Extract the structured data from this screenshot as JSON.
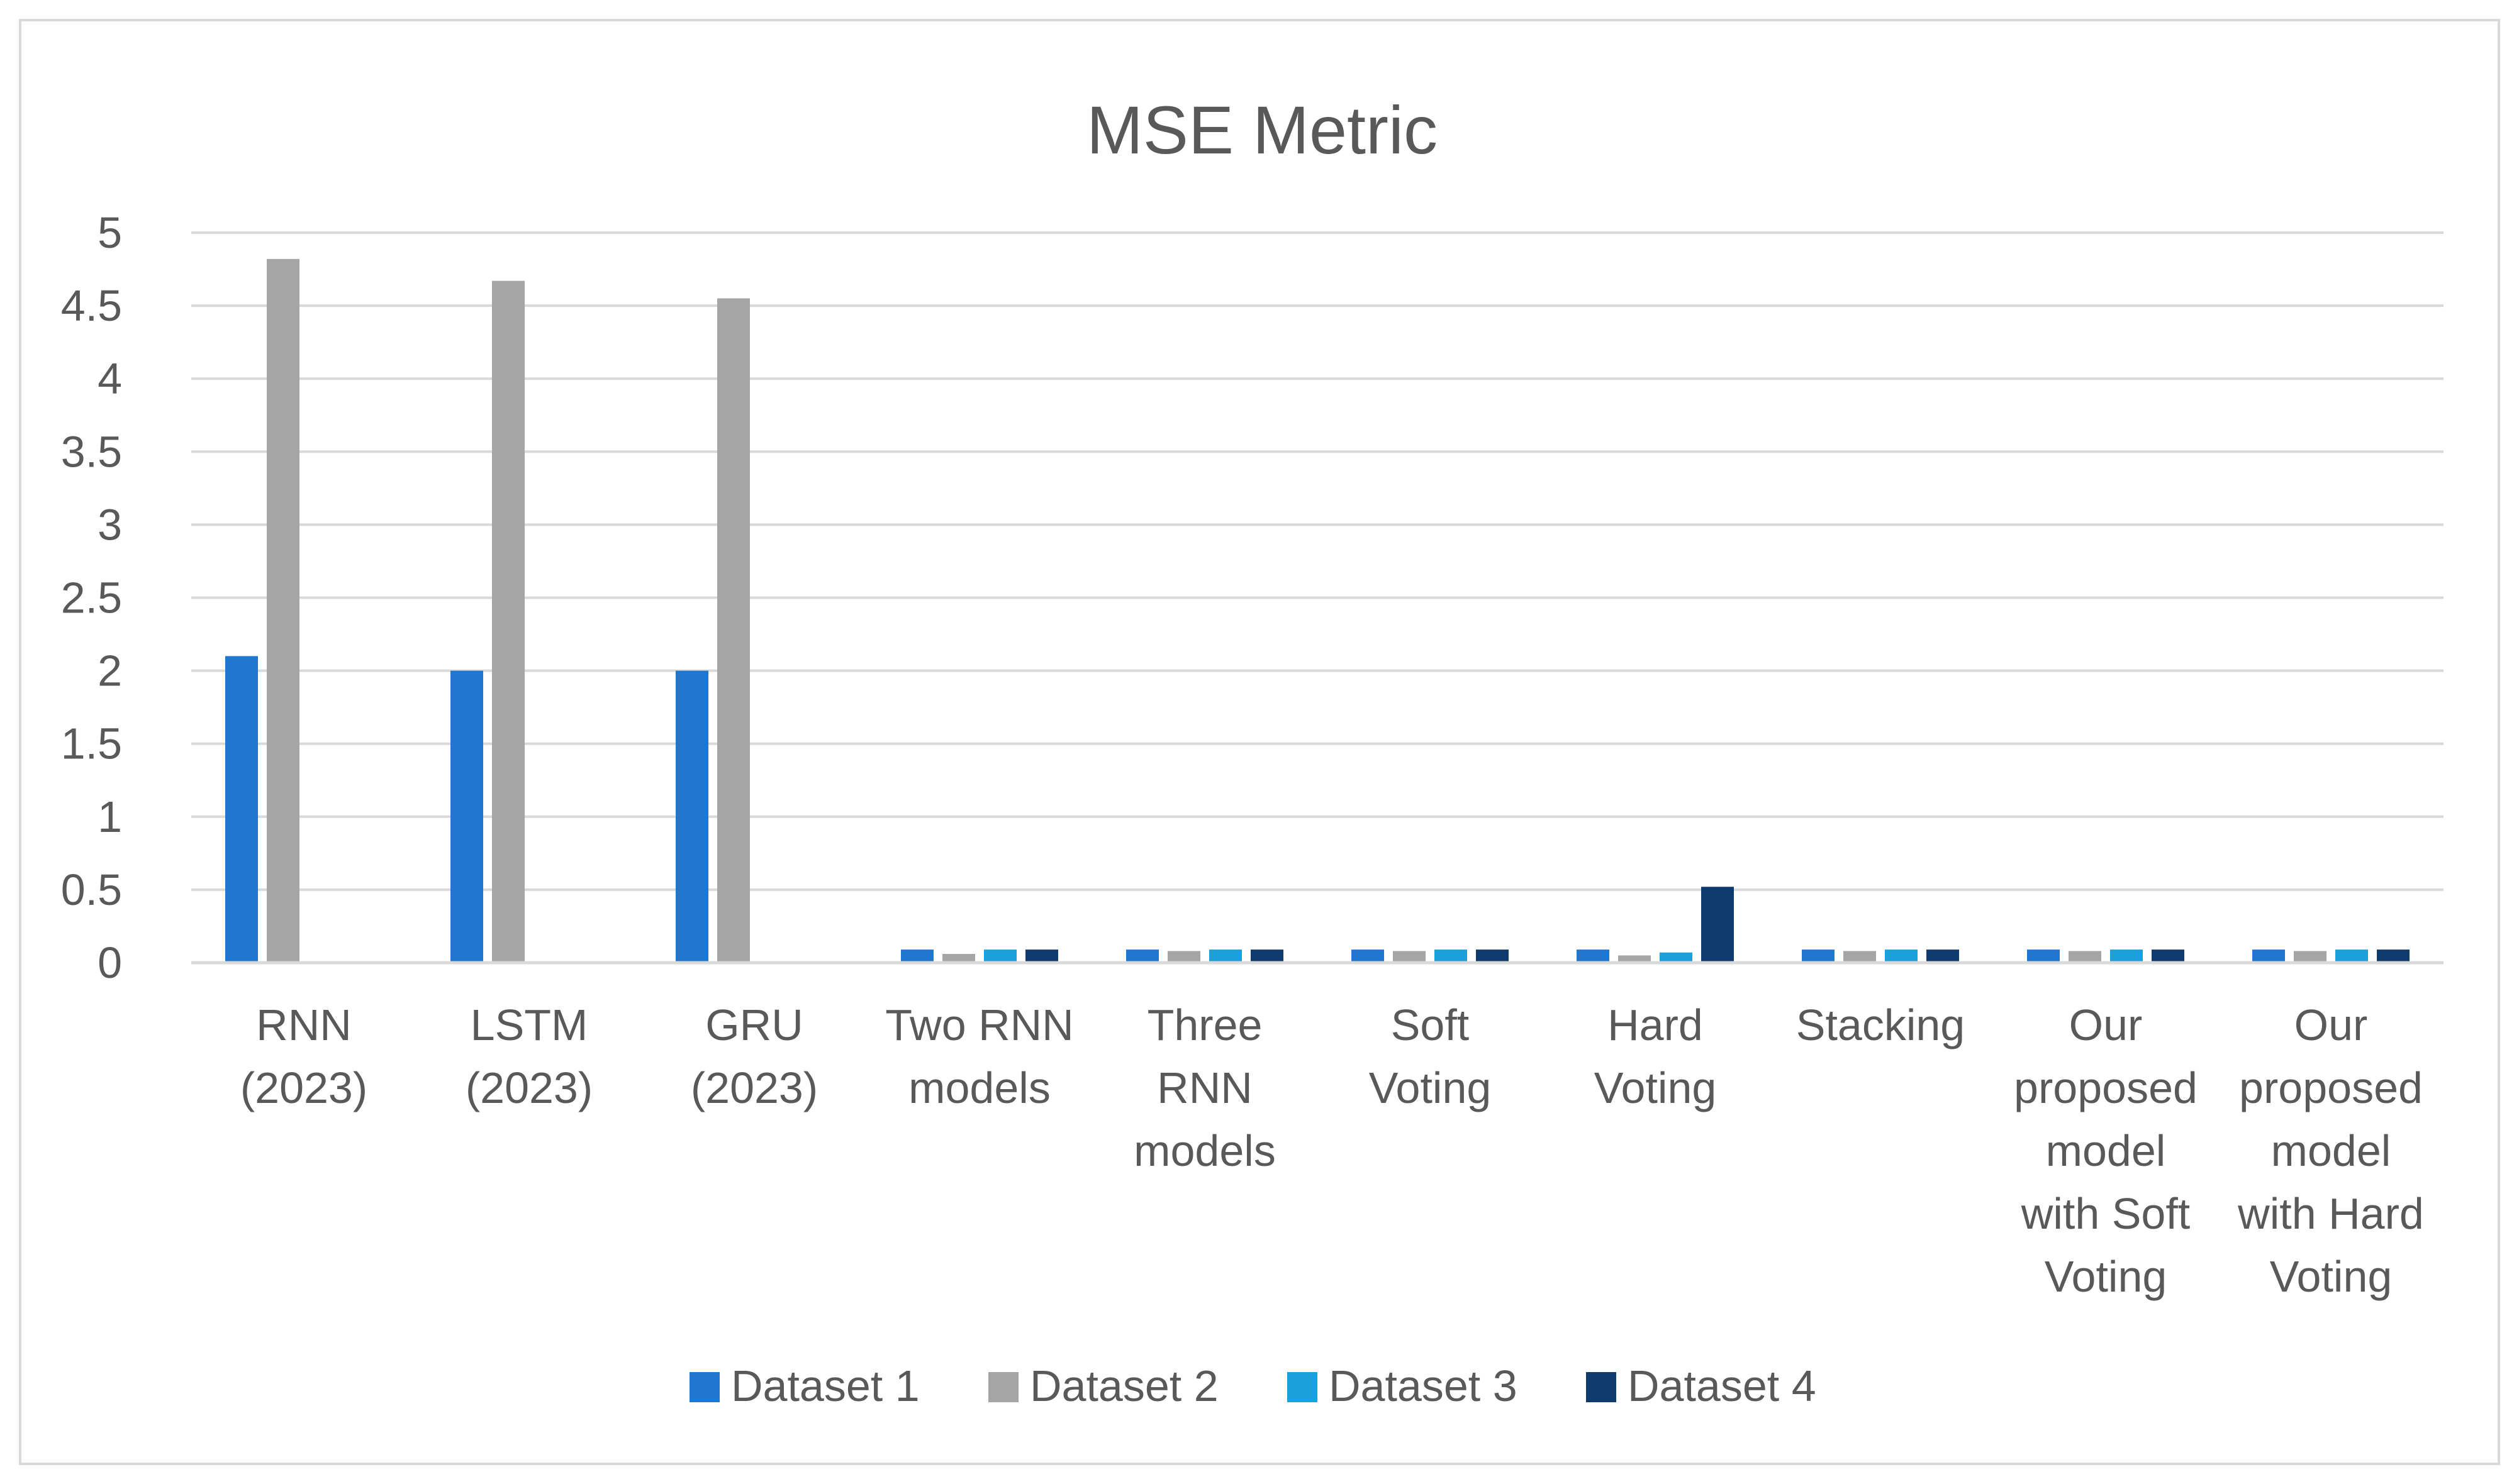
{
  "chart_data": {
    "type": "bar",
    "title": "MSE Metric",
    "xlabel": "",
    "ylabel": "",
    "ylim": [
      0,
      5
    ],
    "yticks": [
      "0",
      "0.5",
      "1",
      "1.5",
      "2",
      "2.5",
      "3",
      "3.5",
      "4",
      "4.5",
      "5"
    ],
    "grid": true,
    "legend_position": "bottom",
    "categories": [
      [
        "RNN",
        "(2023)"
      ],
      [
        "LSTM",
        "(2023)"
      ],
      [
        "GRU",
        "(2023)"
      ],
      [
        "Two RNN",
        "models"
      ],
      [
        "Three",
        "RNN",
        "models"
      ],
      [
        "Soft",
        "Voting"
      ],
      [
        "Hard",
        "Voting"
      ],
      [
        "Stacking"
      ],
      [
        "Our",
        "proposed",
        "model",
        "with Soft",
        "Voting"
      ],
      [
        "Our",
        "proposed",
        "model",
        "with Hard",
        "Voting"
      ]
    ],
    "series": [
      {
        "name": "Dataset 1",
        "color": "#1f77d0",
        "values": [
          2.1,
          2.0,
          2.0,
          0.09,
          0.09,
          0.09,
          0.09,
          0.09,
          0.09,
          0.09
        ]
      },
      {
        "name": "Dataset 2",
        "color": "#a5a5a5",
        "values": [
          4.82,
          4.67,
          4.55,
          0.06,
          0.08,
          0.08,
          0.05,
          0.08,
          0.08,
          0.08
        ]
      },
      {
        "name": "Dataset 3",
        "color": "#1ca0dc",
        "values": [
          0,
          0,
          0,
          0.09,
          0.09,
          0.09,
          0.07,
          0.09,
          0.09,
          0.09
        ]
      },
      {
        "name": "Dataset 4",
        "color": "#0e3a6e",
        "values": [
          0,
          0,
          0,
          0.09,
          0.09,
          0.09,
          0.52,
          0.09,
          0.09,
          0.09
        ]
      }
    ]
  }
}
